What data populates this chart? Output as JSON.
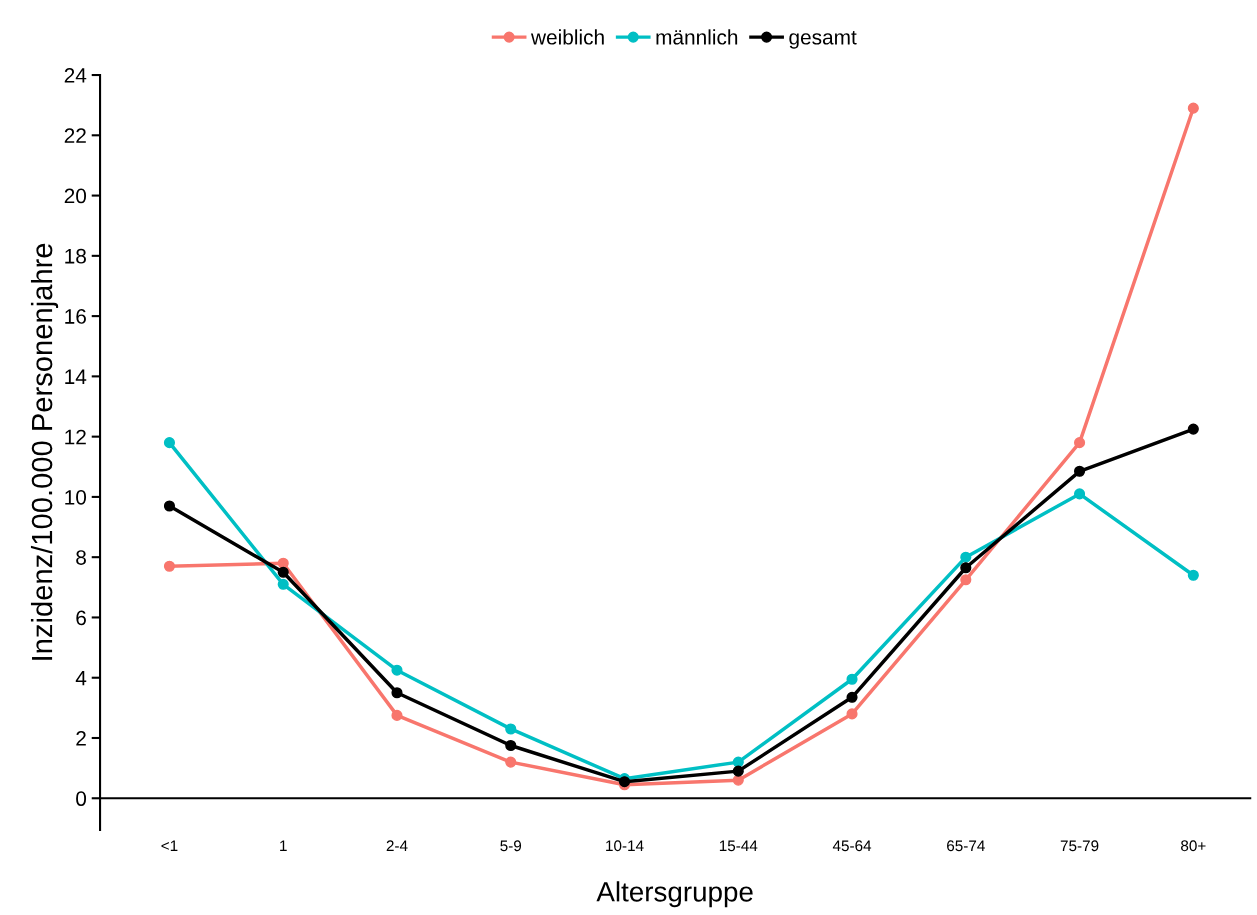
{
  "chart_data": {
    "type": "line",
    "xlabel": "Altersgruppe",
    "ylabel": "Inzidenz/100.000 Personenjahre",
    "categories": [
      "<1",
      "1",
      "2-4",
      "5-9",
      "10-14",
      "15-44",
      "45-64",
      "65-74",
      "75-79",
      "80+"
    ],
    "series": [
      {
        "name": "weiblich",
        "color": "#f8766d",
        "values": [
          7.7,
          7.8,
          2.75,
          1.2,
          0.45,
          0.6,
          2.8,
          7.25,
          11.8,
          22.9
        ]
      },
      {
        "name": "männlich",
        "color": "#00bfc4",
        "values": [
          11.8,
          7.1,
          4.25,
          2.3,
          0.65,
          1.2,
          3.95,
          8.0,
          10.1,
          7.4
        ]
      },
      {
        "name": "gesamt",
        "color": "#000000",
        "values": [
          9.7,
          7.5,
          3.5,
          1.75,
          0.55,
          0.9,
          3.35,
          7.65,
          10.85,
          12.25
        ]
      }
    ],
    "ylim": [
      -1.05,
      24
    ],
    "yticks": [
      0,
      2,
      4,
      6,
      8,
      10,
      12,
      14,
      16,
      18,
      20,
      22,
      24
    ],
    "legend": "top",
    "marker": "circle",
    "line_style": "solid"
  }
}
